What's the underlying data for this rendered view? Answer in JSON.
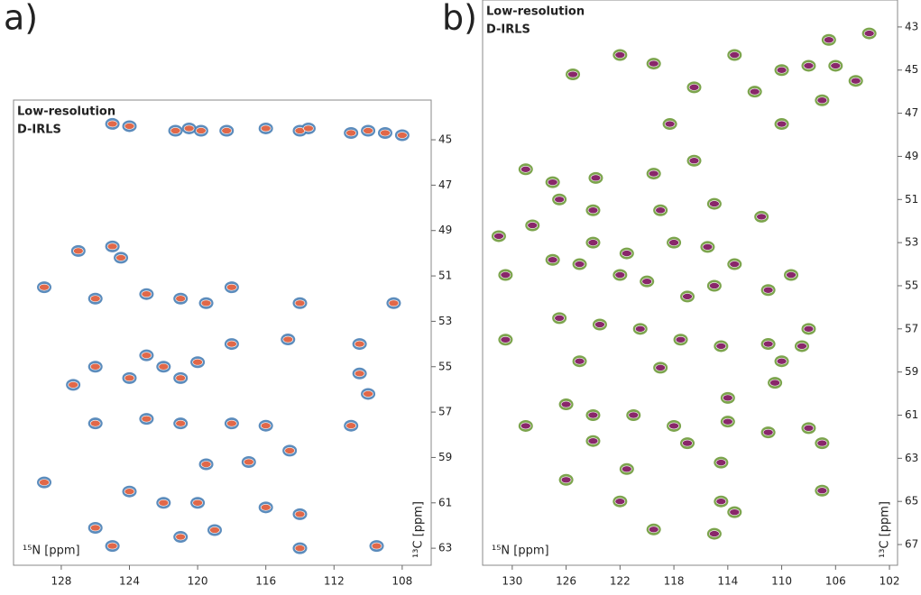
{
  "chart_data": [
    {
      "type": "scatter",
      "label": "a)",
      "x_label": "¹⁵N [ppm]",
      "y_label": "¹³C [ppm]",
      "legend": "top-left",
      "x_reversed": true,
      "xlim": [
        130.8,
        106.3
      ],
      "ylim": [
        63.75,
        43.25
      ],
      "xticks": [
        128,
        124,
        120,
        116,
        112,
        108
      ],
      "yticks": [
        45,
        47,
        49,
        51,
        53,
        55,
        57,
        59,
        61,
        63
      ],
      "x": [
        125,
        124,
        121.3,
        120.5,
        119.8,
        118.3,
        116,
        114,
        113.5,
        111,
        110,
        109,
        108,
        127,
        125,
        124.5,
        129,
        126,
        123,
        121,
        119.5,
        118,
        114,
        108.5,
        122,
        123,
        121,
        124,
        120,
        126,
        127.3,
        118,
        114.7,
        110.5,
        110.5,
        110,
        126,
        123,
        121,
        118,
        116,
        111,
        114.6,
        119.5,
        117,
        124,
        122,
        120,
        116,
        114,
        121,
        119,
        125,
        114,
        109.5,
        126,
        129
      ],
      "series": [
        {
          "name": "Low-resolution",
          "color": "#4a7fb5",
          "values": [
            44.3,
            44.4,
            44.6,
            44.5,
            44.6,
            44.6,
            44.5,
            44.6,
            44.5,
            44.7,
            44.6,
            44.7,
            44.8,
            49.9,
            49.7,
            50.2,
            51.5,
            52,
            51.8,
            52,
            52.2,
            51.5,
            52.2,
            52.2,
            55,
            54.5,
            55.5,
            55.5,
            54.8,
            55,
            55.8,
            54,
            53.8,
            54,
            55.3,
            56.2,
            57.5,
            57.3,
            57.5,
            57.5,
            57.6,
            57.6,
            58.7,
            59.3,
            59.2,
            60.5,
            61,
            61,
            61.2,
            61.5,
            62.5,
            62.2,
            62.9,
            63,
            62.9,
            62.1,
            60.1
          ]
        },
        {
          "name": "D-IRLS",
          "color": "#f0643c",
          "values": [
            44.3,
            44.4,
            44.6,
            44.5,
            44.6,
            44.6,
            44.5,
            44.6,
            44.5,
            44.7,
            44.6,
            44.7,
            44.8,
            49.9,
            49.7,
            50.2,
            51.5,
            52,
            51.8,
            52,
            52.2,
            51.5,
            52.2,
            52.2,
            55,
            54.5,
            55.5,
            55.5,
            54.8,
            55,
            55.8,
            54,
            53.8,
            54,
            55.3,
            56.2,
            57.5,
            57.3,
            57.5,
            57.5,
            57.6,
            57.6,
            58.7,
            59.3,
            59.2,
            60.5,
            61,
            61,
            61.2,
            61.5,
            62.5,
            62.2,
            62.9,
            63,
            62.9,
            62.1,
            60.1
          ]
        }
      ]
    },
    {
      "type": "scatter",
      "label": "b)",
      "x_label": "¹⁵N [ppm]",
      "y_label": "¹³C [ppm]",
      "legend": "top-left",
      "x_reversed": true,
      "xlim": [
        132.2,
        101.4
      ],
      "ylim": [
        67.96,
        41.75
      ],
      "xticks": [
        130,
        126,
        122,
        118,
        114,
        110,
        106,
        102
      ],
      "yticks": [
        43,
        45,
        47,
        49,
        51,
        53,
        55,
        57,
        59,
        61,
        63,
        65,
        67
      ],
      "x": [
        106.5,
        103.5,
        113.5,
        110,
        108,
        106,
        104.5,
        119.5,
        122,
        125.5,
        116.5,
        112,
        107,
        118.3,
        110,
        129,
        127,
        123.8,
        119.5,
        116.5,
        124,
        126.5,
        119,
        115,
        111.5,
        131,
        128.5,
        124,
        121.5,
        118,
        115.5,
        113.5,
        125,
        127,
        122,
        120,
        117,
        115,
        109.3,
        111,
        126.5,
        123.5,
        120.5,
        117.5,
        114.5,
        111,
        108.5,
        125,
        119,
        110,
        110.5,
        114,
        126,
        124,
        121,
        118,
        114,
        111,
        108,
        129,
        124,
        121.5,
        117,
        114.5,
        107,
        126,
        122,
        114.5,
        113.5,
        119.5,
        115,
        107,
        130.5,
        130.5,
        108
      ],
      "series": [
        {
          "name": "Low-resolution",
          "color": "#6e9a3a",
          "values": [
            43.6,
            43.3,
            44.3,
            45,
            44.8,
            44.8,
            45.5,
            44.7,
            44.3,
            45.2,
            45.8,
            46,
            46.4,
            47.5,
            47.5,
            49.6,
            50.2,
            50,
            49.8,
            49.2,
            51.5,
            51,
            51.5,
            51.2,
            51.8,
            52.7,
            52.2,
            53,
            53.5,
            53,
            53.2,
            54,
            54,
            53.8,
            54.5,
            54.8,
            55.5,
            55,
            54.5,
            55.2,
            56.5,
            56.8,
            57,
            57.5,
            57.8,
            57.7,
            57.8,
            58.5,
            58.8,
            58.5,
            59.5,
            60.2,
            60.5,
            61,
            61,
            61.5,
            61.3,
            61.8,
            61.6,
            61.5,
            62.2,
            63.5,
            62.3,
            63.2,
            62.3,
            64,
            65,
            65,
            65.5,
            66.3,
            66.5,
            64.5,
            54.5,
            57.5,
            57
          ]
        },
        {
          "name": "D-IRLS",
          "color": "#8b1a6e",
          "values": [
            43.6,
            43.3,
            44.3,
            45,
            44.8,
            44.8,
            45.5,
            44.7,
            44.3,
            45.2,
            45.8,
            46,
            46.4,
            47.5,
            47.5,
            49.6,
            50.2,
            50,
            49.8,
            49.2,
            51.5,
            51,
            51.5,
            51.2,
            51.8,
            52.7,
            52.2,
            53,
            53.5,
            53,
            53.2,
            54,
            54,
            53.8,
            54.5,
            54.8,
            55.5,
            55,
            54.5,
            55.2,
            56.5,
            56.8,
            57,
            57.5,
            57.8,
            57.7,
            57.8,
            58.5,
            58.8,
            58.5,
            59.5,
            60.2,
            60.5,
            61,
            61,
            61.5,
            61.3,
            61.8,
            61.6,
            61.5,
            62.2,
            63.5,
            62.3,
            63.2,
            62.3,
            64,
            65,
            65,
            65.5,
            66.3,
            66.5,
            64.5,
            54.5,
            57.5,
            57
          ]
        }
      ]
    }
  ]
}
